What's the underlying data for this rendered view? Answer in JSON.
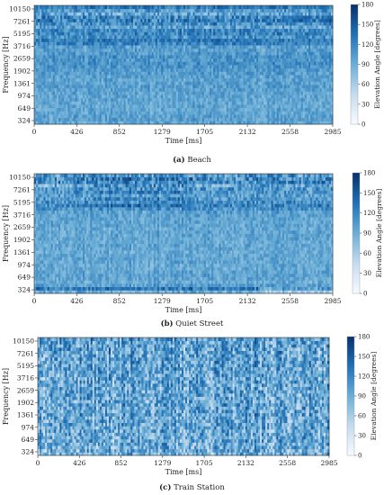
{
  "chart_data": [
    {
      "type": "heatmap",
      "panel_letter": "(a)",
      "panel_name": "Beach",
      "xlabel": "Time [ms]",
      "ylabel": "Frequency [Hz]",
      "colorbar_label": "Elevation Angle [degrees]",
      "x_ticks": [
        0,
        426,
        852,
        1279,
        1705,
        2132,
        2558,
        2985
      ],
      "y_ticks": [
        324,
        649,
        974,
        1361,
        1902,
        2659,
        3716,
        5195,
        7261,
        10150
      ],
      "xlim": [
        0,
        2985
      ],
      "colorbar_ticks": [
        0,
        30,
        60,
        90,
        120,
        150,
        180
      ],
      "clim": [
        0,
        180
      ],
      "colormap": [
        "#f7fbff",
        "#c6dbef",
        "#6baed6",
        "#2171b5",
        "#08306b"
      ],
      "band_mean": [
        95,
        100,
        98,
        96,
        95,
        96,
        95,
        97,
        96,
        98,
        100,
        102,
        99,
        98,
        100,
        103,
        105,
        108,
        112,
        108,
        110,
        105,
        102,
        100,
        122,
        130,
        110,
        120,
        118,
        100,
        115,
        125,
        118,
        95,
        105,
        128
      ],
      "band_variation": [
        20,
        18,
        18,
        18,
        18,
        18,
        18,
        18,
        18,
        18,
        18,
        18,
        18,
        18,
        18,
        18,
        18,
        18,
        18,
        20,
        20,
        20,
        20,
        22,
        25,
        25,
        28,
        28,
        28,
        32,
        35,
        38,
        35,
        35,
        30,
        25
      ]
    },
    {
      "type": "heatmap",
      "panel_letter": "(b)",
      "panel_name": "Quiet Street",
      "xlabel": "Time [ms]",
      "ylabel": "Frequency [Hz]",
      "colorbar_label": "Elevation Angle [degrees]",
      "x_ticks": [
        0,
        426,
        852,
        1279,
        1705,
        2132,
        2558,
        2985
      ],
      "y_ticks": [
        324,
        649,
        974,
        1361,
        1902,
        2659,
        3716,
        5195,
        7261,
        10150
      ],
      "xlim": [
        0,
        2985
      ],
      "colorbar_ticks": [
        0,
        30,
        60,
        90,
        120,
        150,
        180
      ],
      "clim": [
        0,
        180
      ],
      "colormap": [
        "#f7fbff",
        "#c6dbef",
        "#6baed6",
        "#2171b5",
        "#08306b"
      ],
      "band_mean": [
        90,
        130,
        100,
        92,
        95,
        98,
        96,
        94,
        92,
        95,
        96,
        94,
        92,
        95,
        96,
        94,
        95,
        96,
        95,
        94,
        95,
        96,
        97,
        98,
        100,
        110,
        118,
        112,
        105,
        100,
        105,
        110,
        95,
        120,
        115,
        108
      ],
      "band_variation": [
        25,
        30,
        20,
        18,
        18,
        18,
        18,
        18,
        18,
        18,
        18,
        18,
        18,
        18,
        18,
        18,
        18,
        18,
        18,
        18,
        18,
        18,
        18,
        20,
        22,
        25,
        30,
        30,
        30,
        28,
        30,
        35,
        40,
        40,
        40,
        40
      ]
    },
    {
      "type": "heatmap",
      "panel_letter": "(c)",
      "panel_name": "Train Station",
      "xlabel": "Time [ms]",
      "ylabel": "Frequency [Hz]",
      "colorbar_label": "Elevation Angle [degrees]",
      "x_ticks": [
        0,
        426,
        852,
        1279,
        1705,
        2132,
        2558,
        2985
      ],
      "y_ticks": [
        324,
        649,
        974,
        1361,
        1902,
        2659,
        3716,
        5195,
        7261,
        10150
      ],
      "xlim": [
        0,
        2985
      ],
      "colorbar_ticks": [
        0,
        30,
        60,
        90,
        120,
        150,
        180
      ],
      "clim": [
        0,
        180
      ],
      "colormap": [
        "#f7fbff",
        "#c6dbef",
        "#6baed6",
        "#2171b5",
        "#08306b"
      ],
      "band_mean": [
        85,
        90,
        92,
        90,
        92,
        94,
        92,
        95,
        96,
        95,
        94,
        96,
        98,
        96,
        95,
        97,
        96,
        95,
        96,
        95,
        94,
        96,
        95,
        97,
        96,
        98,
        95,
        96,
        98,
        97,
        96,
        98,
        100,
        98,
        100,
        102
      ],
      "band_variation": [
        45,
        45,
        45,
        45,
        45,
        45,
        45,
        45,
        45,
        45,
        45,
        45,
        45,
        45,
        45,
        45,
        45,
        45,
        45,
        45,
        45,
        45,
        45,
        45,
        45,
        45,
        45,
        45,
        45,
        45,
        45,
        45,
        45,
        45,
        45,
        45
      ]
    }
  ]
}
